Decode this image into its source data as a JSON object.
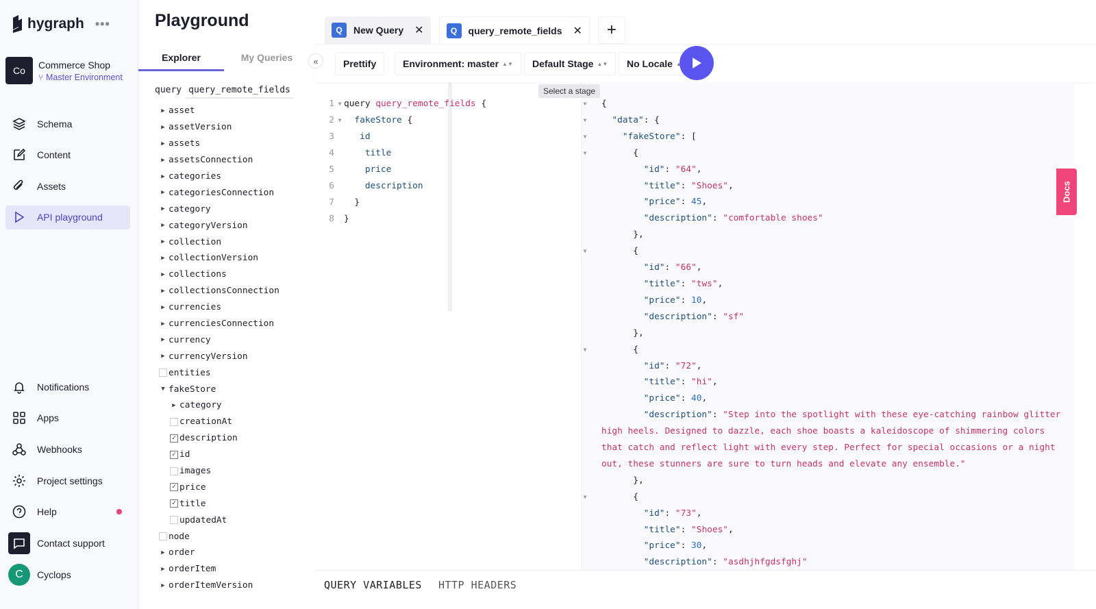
{
  "app": {
    "logo": "hygraph",
    "more": "•••",
    "project_initials": "Co",
    "project_name": "Commerce Shop",
    "environment": "Master Environment"
  },
  "sidebar": {
    "items": [
      {
        "label": "Schema",
        "icon": "layers-icon"
      },
      {
        "label": "Content",
        "icon": "edit-icon"
      },
      {
        "label": "Assets",
        "icon": "paperclip-icon"
      },
      {
        "label": "API playground",
        "icon": "play-icon",
        "active": true
      }
    ],
    "bottom_items": [
      {
        "label": "Notifications",
        "icon": "bell-icon"
      },
      {
        "label": "Apps",
        "icon": "grid-icon"
      },
      {
        "label": "Webhooks",
        "icon": "webhook-icon"
      },
      {
        "label": "Project settings",
        "icon": "gear-icon"
      },
      {
        "label": "Help",
        "icon": "help-icon",
        "badge_color": "#e8437a"
      },
      {
        "label": "Contact support",
        "icon": "chat-icon"
      },
      {
        "label": "Cyclops",
        "avatar": "C"
      }
    ]
  },
  "explorer": {
    "title": "Playground",
    "tabs": [
      "Explorer",
      "My Queries"
    ],
    "query_keyword": "query",
    "query_name": "query_remote_fields",
    "tree": [
      {
        "label": "asset",
        "kind": "arrow"
      },
      {
        "label": "assetVersion",
        "kind": "arrow"
      },
      {
        "label": "assets",
        "kind": "arrow"
      },
      {
        "label": "assetsConnection",
        "kind": "arrow"
      },
      {
        "label": "categories",
        "kind": "arrow"
      },
      {
        "label": "categoriesConnection",
        "kind": "arrow"
      },
      {
        "label": "category",
        "kind": "arrow"
      },
      {
        "label": "categoryVersion",
        "kind": "arrow"
      },
      {
        "label": "collection",
        "kind": "arrow"
      },
      {
        "label": "collectionVersion",
        "kind": "arrow"
      },
      {
        "label": "collections",
        "kind": "arrow"
      },
      {
        "label": "collectionsConnection",
        "kind": "arrow"
      },
      {
        "label": "currencies",
        "kind": "arrow"
      },
      {
        "label": "currenciesConnection",
        "kind": "arrow"
      },
      {
        "label": "currency",
        "kind": "arrow"
      },
      {
        "label": "currencyVersion",
        "kind": "arrow"
      },
      {
        "label": "entities",
        "kind": "check",
        "checked": false
      },
      {
        "label": "fakeStore",
        "kind": "expanded"
      },
      {
        "label": "category",
        "kind": "arrow",
        "child": true
      },
      {
        "label": "creationAt",
        "kind": "check",
        "checked": false,
        "child": true
      },
      {
        "label": "description",
        "kind": "check",
        "checked": true,
        "child": true
      },
      {
        "label": "id",
        "kind": "check",
        "checked": true,
        "child": true
      },
      {
        "label": "images",
        "kind": "check",
        "checked": false,
        "child": true
      },
      {
        "label": "price",
        "kind": "check",
        "checked": true,
        "child": true
      },
      {
        "label": "title",
        "kind": "check",
        "checked": true,
        "child": true
      },
      {
        "label": "updatedAt",
        "kind": "check",
        "checked": false,
        "child": true
      },
      {
        "label": "node",
        "kind": "check",
        "checked": false
      },
      {
        "label": "order",
        "kind": "arrow"
      },
      {
        "label": "orderItem",
        "kind": "arrow"
      },
      {
        "label": "orderItemVersion",
        "kind": "arrow"
      }
    ]
  },
  "tabs": [
    {
      "label": "New Query",
      "icon": "Q"
    },
    {
      "label": "query_remote_fields",
      "icon": "Q",
      "active": true
    }
  ],
  "toolbar": {
    "prettify": "Prettify",
    "environment": "Environment: master",
    "stage": "Default Stage",
    "locale": "No Locale",
    "tooltip": "Select a stage"
  },
  "editor": {
    "lines": [
      [
        {
          "c": "kw",
          "t": "query "
        },
        {
          "c": "nm",
          "t": "query_remote_fields"
        },
        {
          "c": "kw",
          "t": " {"
        }
      ],
      [
        {
          "c": "kw",
          "t": "  "
        },
        {
          "c": "fd",
          "t": "fakeStore"
        },
        {
          "c": "kw",
          "t": " {"
        }
      ],
      [
        {
          "c": "fd",
          "t": "   id"
        }
      ],
      [
        {
          "c": "fd",
          "t": "    title"
        }
      ],
      [
        {
          "c": "fd",
          "t": "    price"
        }
      ],
      [
        {
          "c": "fd",
          "t": "    description"
        }
      ],
      [
        {
          "c": "kw",
          "t": "  }"
        }
      ],
      [
        {
          "c": "kw",
          "t": "}"
        }
      ]
    ],
    "folds": [
      1,
      2
    ]
  },
  "results": {
    "lines": [
      {
        "i": 0,
        "p": "{",
        "f": true
      },
      {
        "i": 1,
        "k": "data",
        "p": ": {",
        "f": true
      },
      {
        "i": 2,
        "k": "fakeStore",
        "p": ": [",
        "f": true
      },
      {
        "i": 3,
        "p": "{",
        "f": true
      },
      {
        "i": 4,
        "k": "id",
        "s": "64",
        "p": ","
      },
      {
        "i": 4,
        "k": "title",
        "s": "Shoes",
        "p": ","
      },
      {
        "i": 4,
        "k": "price",
        "n": "45",
        "p": ","
      },
      {
        "i": 4,
        "k": "description",
        "s": "comfortable shoes"
      },
      {
        "i": 3,
        "p": "},"
      },
      {
        "i": 3,
        "p": "{",
        "f": true
      },
      {
        "i": 4,
        "k": "id",
        "s": "66",
        "p": ","
      },
      {
        "i": 4,
        "k": "title",
        "s": "tws",
        "p": ","
      },
      {
        "i": 4,
        "k": "price",
        "n": "10",
        "p": ","
      },
      {
        "i": 4,
        "k": "description",
        "s": "sf"
      },
      {
        "i": 3,
        "p": "},"
      },
      {
        "i": 3,
        "p": "{",
        "f": true
      },
      {
        "i": 4,
        "k": "id",
        "s": "72",
        "p": ","
      },
      {
        "i": 4,
        "k": "title",
        "s": "hi",
        "p": ","
      },
      {
        "i": 4,
        "k": "price",
        "n": "40",
        "p": ","
      },
      {
        "i": 4,
        "k": "description",
        "s": "Step into the spotlight with these eye-catching rainbow glitter high heels. Designed to dazzle, each shoe boasts a kaleidoscope of shimmering colors that catch and reflect light with every step. Perfect for special occasions or a night out, these stunners are sure to turn heads and elevate any ensemble."
      },
      {
        "i": 3,
        "p": "},"
      },
      {
        "i": 3,
        "p": "{",
        "f": true
      },
      {
        "i": 4,
        "k": "id",
        "s": "73",
        "p": ","
      },
      {
        "i": 4,
        "k": "title",
        "s": "Shoes",
        "p": ","
      },
      {
        "i": 4,
        "k": "price",
        "n": "30",
        "p": ","
      },
      {
        "i": 4,
        "k": "description",
        "s": "asdhjhfgdsfghj"
      }
    ]
  },
  "docs": "Docs",
  "bottom": {
    "tabs": [
      "QUERY VARIABLES",
      "HTTP HEADERS"
    ]
  },
  "colors": {
    "accent": "#5b55ef",
    "brand_pink": "#f0457a",
    "string": "#c4326b"
  }
}
